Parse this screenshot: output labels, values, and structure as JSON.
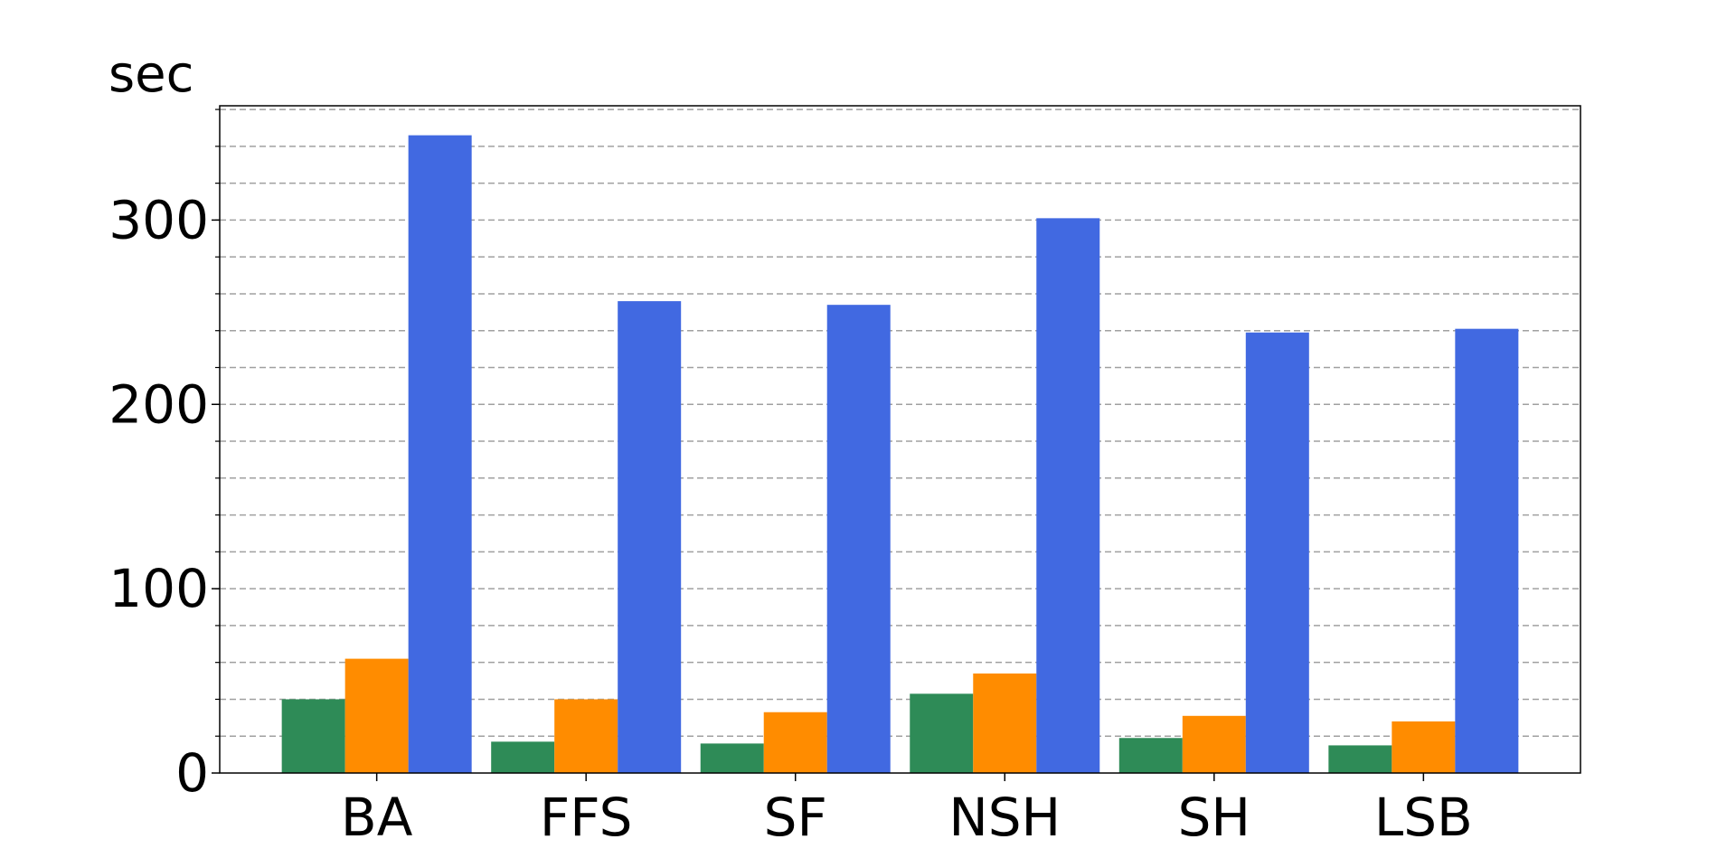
{
  "chart_data": {
    "type": "bar",
    "title": "",
    "xlabel": "",
    "ylabel": "sec",
    "ylim": [
      0,
      362
    ],
    "yticks": [
      0,
      100,
      200,
      300
    ],
    "minor_tick_step": 20,
    "grid": true,
    "categories": [
      "BA",
      "FFS",
      "SF",
      "NSH",
      "SH",
      "LSB"
    ],
    "series": [
      {
        "color": "#2e8b57",
        "values": [
          40,
          17,
          16,
          43,
          19,
          15
        ]
      },
      {
        "color": "#ff8c00",
        "values": [
          62,
          40,
          33,
          54,
          31,
          28
        ]
      },
      {
        "color": "#4169e1",
        "values": [
          346,
          256,
          254,
          301,
          239,
          241
        ]
      }
    ]
  }
}
